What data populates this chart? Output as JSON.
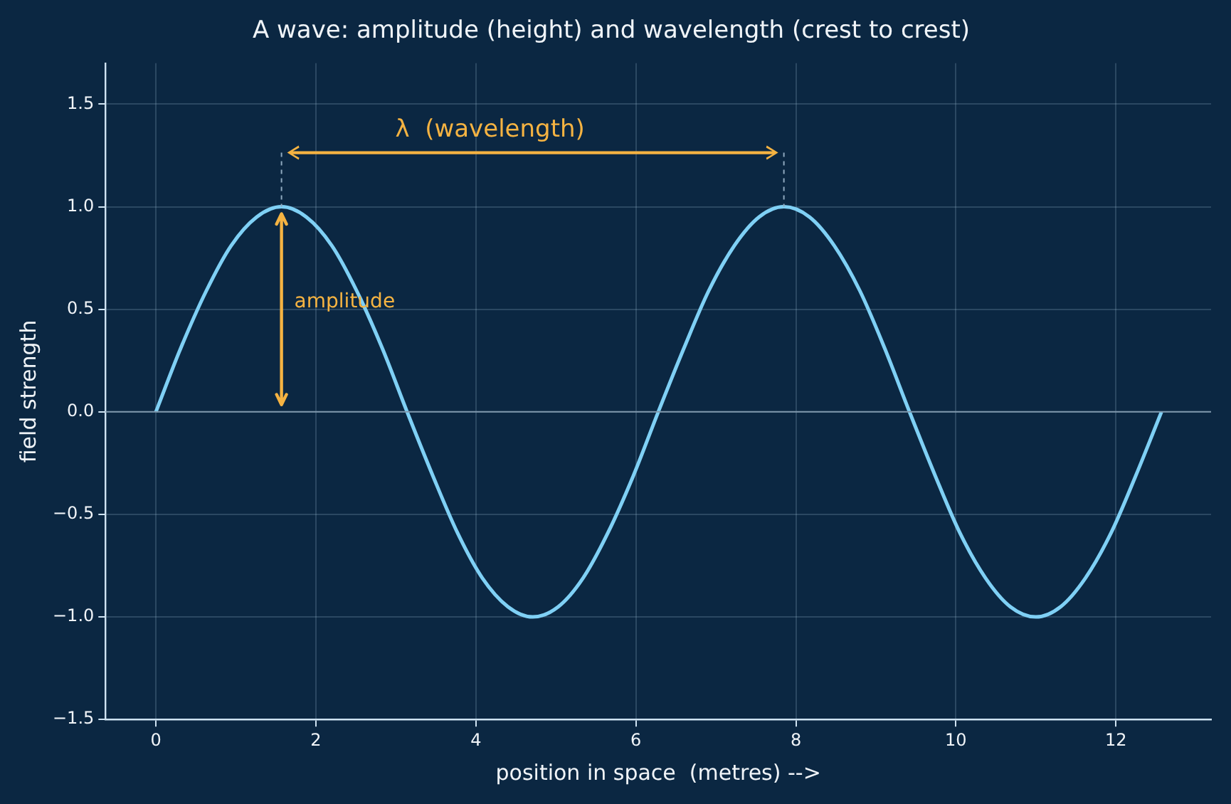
{
  "chart_data": {
    "type": "line",
    "title": "A wave: amplitude (height) and wavelength (crest to crest)",
    "xlabel": "position in space  (metres) -->",
    "ylabel": "field strength",
    "x": [
      0,
      0.31,
      0.63,
      0.94,
      1.26,
      1.57,
      1.88,
      2.2,
      2.51,
      2.83,
      3.14,
      3.46,
      3.77,
      4.08,
      4.4,
      4.71,
      5.03,
      5.34,
      5.65,
      5.97,
      6.28,
      6.6,
      6.91,
      7.23,
      7.54,
      7.85,
      8.17,
      8.48,
      8.8,
      9.11,
      9.42,
      9.74,
      10.05,
      10.37,
      10.68,
      11,
      11.31,
      11.62,
      11.94,
      12.25,
      12.57
    ],
    "series": [
      {
        "color": "#7fd0f5",
        "values": [
          0,
          0.31,
          0.59,
          0.81,
          0.95,
          1,
          0.95,
          0.81,
          0.59,
          0.31,
          0,
          -0.31,
          -0.59,
          -0.81,
          -0.95,
          -1,
          -0.95,
          -0.81,
          -0.59,
          -0.31,
          0,
          0.31,
          0.59,
          0.81,
          0.95,
          1,
          0.95,
          0.81,
          0.59,
          0.31,
          0,
          -0.31,
          -0.59,
          -0.81,
          -0.95,
          -1,
          -0.95,
          -0.81,
          -0.59,
          -0.31,
          0
        ]
      }
    ],
    "xlim": [
      -0.63,
      13.19
    ],
    "xticks": [
      0,
      2,
      4,
      6,
      8,
      10,
      12
    ],
    "ylim": [
      -1.5,
      1.7
    ],
    "yticks": [
      -1.5,
      {
        "value": -1,
        "label": "−1.0"
      },
      -0.5,
      {
        "value": 0,
        "label": "0.0"
      },
      0.5,
      {
        "value": 1,
        "label": "1.0"
      },
      1.5
    ],
    "grid": true,
    "legend": false,
    "marker": "none",
    "line_style": "solid",
    "ref_lines": [
      {
        "axis": "y",
        "value": 0,
        "color": "#7f98ad"
      }
    ],
    "annotations": [
      "λ  (wavelength)",
      "amplitude"
    ]
  }
}
